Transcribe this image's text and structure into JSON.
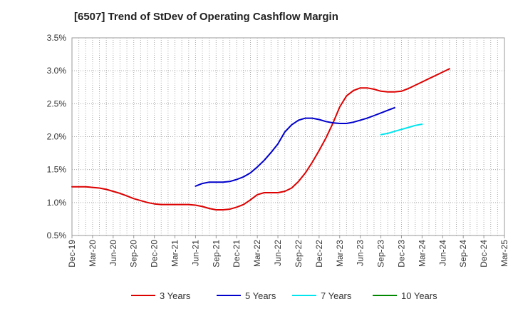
{
  "chart_data": {
    "type": "line",
    "title": "[6507]  Trend of StDev of Operating Cashflow Margin",
    "xlabel": "",
    "ylabel": "",
    "x_ticks": [
      "Dec-19",
      "Mar-20",
      "Jun-20",
      "Sep-20",
      "Dec-20",
      "Mar-21",
      "Jun-21",
      "Sep-21",
      "Dec-21",
      "Mar-22",
      "Jun-22",
      "Sep-22",
      "Dec-22",
      "Mar-23",
      "Jun-23",
      "Sep-23",
      "Dec-23",
      "Mar-24",
      "Jun-24",
      "Sep-24",
      "Dec-24",
      "Mar-25"
    ],
    "y_ticks": [
      "0.5%",
      "1.0%",
      "1.5%",
      "2.0%",
      "2.5%",
      "3.0%",
      "3.5%"
    ],
    "ylim": [
      0.5,
      3.5
    ],
    "grid": "dotted",
    "legend_position": "bottom",
    "series": [
      {
        "name": "3 Years",
        "color": "#dd0000",
        "points": [
          [
            "Dec-19",
            1.24
          ],
          [
            "Jan-20",
            1.24
          ],
          [
            "Feb-20",
            1.24
          ],
          [
            "Mar-20",
            1.23
          ],
          [
            "Apr-20",
            1.22
          ],
          [
            "May-20",
            1.2
          ],
          [
            "Jun-20",
            1.17
          ],
          [
            "Jul-20",
            1.14
          ],
          [
            "Aug-20",
            1.1
          ],
          [
            "Sep-20",
            1.06
          ],
          [
            "Oct-20",
            1.03
          ],
          [
            "Nov-20",
            1.0
          ],
          [
            "Dec-20",
            0.98
          ],
          [
            "Jan-21",
            0.97
          ],
          [
            "Feb-21",
            0.97
          ],
          [
            "Mar-21",
            0.97
          ],
          [
            "Apr-21",
            0.97
          ],
          [
            "May-21",
            0.97
          ],
          [
            "Jun-21",
            0.96
          ],
          [
            "Jul-21",
            0.94
          ],
          [
            "Aug-21",
            0.91
          ],
          [
            "Sep-21",
            0.89
          ],
          [
            "Oct-21",
            0.89
          ],
          [
            "Nov-21",
            0.9
          ],
          [
            "Dec-21",
            0.93
          ],
          [
            "Jan-22",
            0.97
          ],
          [
            "Feb-22",
            1.04
          ],
          [
            "Mar-22",
            1.12
          ],
          [
            "Apr-22",
            1.15
          ],
          [
            "May-22",
            1.15
          ],
          [
            "Jun-22",
            1.15
          ],
          [
            "Jul-22",
            1.17
          ],
          [
            "Aug-22",
            1.22
          ],
          [
            "Sep-22",
            1.32
          ],
          [
            "Oct-22",
            1.45
          ],
          [
            "Nov-22",
            1.61
          ],
          [
            "Dec-22",
            1.79
          ],
          [
            "Jan-23",
            1.98
          ],
          [
            "Feb-23",
            2.2
          ],
          [
            "Mar-23",
            2.45
          ],
          [
            "Apr-23",
            2.62
          ],
          [
            "May-23",
            2.7
          ],
          [
            "Jun-23",
            2.74
          ],
          [
            "Jul-23",
            2.74
          ],
          [
            "Aug-23",
            2.72
          ],
          [
            "Sep-23",
            2.69
          ],
          [
            "Oct-23",
            2.68
          ],
          [
            "Nov-23",
            2.68
          ],
          [
            "Dec-23",
            2.69
          ],
          [
            "Jan-24",
            2.73
          ],
          [
            "Feb-24",
            2.78
          ],
          [
            "Mar-24",
            2.83
          ],
          [
            "Apr-24",
            2.88
          ],
          [
            "May-24",
            2.93
          ],
          [
            "Jun-24",
            2.98
          ],
          [
            "Jul-24",
            3.03
          ]
        ]
      },
      {
        "name": "5 Years",
        "color": "#0000cc",
        "points": [
          [
            "Jun-21",
            1.25
          ],
          [
            "Jul-21",
            1.29
          ],
          [
            "Aug-21",
            1.31
          ],
          [
            "Sep-21",
            1.31
          ],
          [
            "Oct-21",
            1.31
          ],
          [
            "Nov-21",
            1.32
          ],
          [
            "Dec-21",
            1.35
          ],
          [
            "Jan-22",
            1.39
          ],
          [
            "Feb-22",
            1.45
          ],
          [
            "Mar-22",
            1.54
          ],
          [
            "Apr-22",
            1.64
          ],
          [
            "May-22",
            1.76
          ],
          [
            "Jun-22",
            1.89
          ],
          [
            "Jul-22",
            2.07
          ],
          [
            "Aug-22",
            2.18
          ],
          [
            "Sep-22",
            2.25
          ],
          [
            "Oct-22",
            2.28
          ],
          [
            "Nov-22",
            2.28
          ],
          [
            "Dec-22",
            2.26
          ],
          [
            "Jan-23",
            2.23
          ],
          [
            "Feb-23",
            2.21
          ],
          [
            "Mar-23",
            2.2
          ],
          [
            "Apr-23",
            2.2
          ],
          [
            "May-23",
            2.22
          ],
          [
            "Jun-23",
            2.25
          ],
          [
            "Jul-23",
            2.28
          ],
          [
            "Aug-23",
            2.32
          ],
          [
            "Sep-23",
            2.36
          ],
          [
            "Oct-23",
            2.4
          ],
          [
            "Nov-23",
            2.44
          ]
        ]
      },
      {
        "name": "7 Years",
        "color": "#00e5ee",
        "points": [
          [
            "Sep-23",
            2.03
          ],
          [
            "Oct-23",
            2.05
          ],
          [
            "Nov-23",
            2.08
          ],
          [
            "Dec-23",
            2.11
          ],
          [
            "Jan-24",
            2.14
          ],
          [
            "Feb-24",
            2.17
          ],
          [
            "Mar-24",
            2.19
          ]
        ]
      },
      {
        "name": "10 Years",
        "color": "#008800",
        "points": []
      }
    ]
  }
}
